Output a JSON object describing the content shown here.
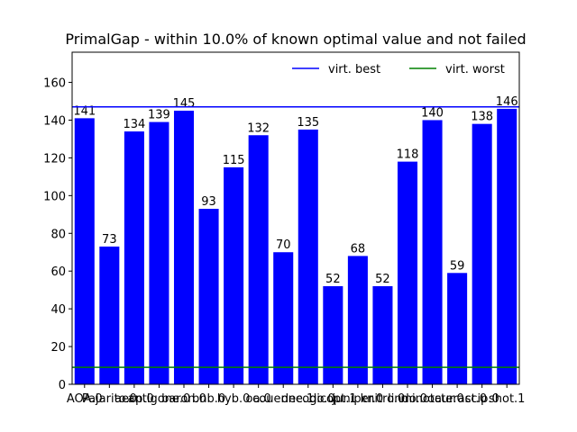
{
  "chart_data": {
    "type": "bar",
    "title": "PrimalGap - within 10.0% of known optimal value and not failed",
    "categories": [
      "AOA.0",
      "Pajarito.0",
      "aecp.0",
      "antigone.0",
      "baron.0",
      "bnb.0",
      "hyb.0",
      "oa.0",
      "couenne.1",
      "decogo.0",
      "dicopt.1",
      "juniper.0",
      "knitro.0",
      "lindo.0",
      "minotaur.0",
      "octeract.0",
      "scip.0",
      "shot.1"
    ],
    "values": [
      141,
      73,
      134,
      139,
      145,
      93,
      115,
      132,
      70,
      135,
      52,
      68,
      52,
      118,
      140,
      59,
      138,
      146
    ],
    "color": "#0000ff",
    "ylim": [
      0,
      176
    ],
    "yticks": [
      0,
      20,
      40,
      60,
      80,
      100,
      120,
      140,
      160
    ],
    "reference_lines": [
      {
        "name": "virt. best",
        "value": 147,
        "color": "#0000ff"
      },
      {
        "name": "virt. worst",
        "value": 9,
        "color": "#008000"
      }
    ],
    "legend": "upper right"
  }
}
